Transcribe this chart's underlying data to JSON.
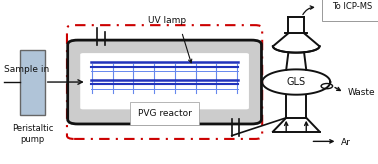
{
  "bg_color": "#ffffff",
  "pump_color": "#b0c4d8",
  "pump_label": "Peristaltic\npump",
  "sample_label": "Sample in",
  "pvg_label": "PVG reactor",
  "uv_label": "UV lamp",
  "gls_label": "GLS",
  "to_icpms_label": "To ICP-MS",
  "waste_label": "Waste",
  "ar_label": "Ar",
  "reactor_color": "#111111",
  "blue_color": "#2233bb",
  "blue_light": "#6688ee",
  "dashed_color": "#cc0000",
  "text_color": "#111111",
  "fontsize": 6.5
}
